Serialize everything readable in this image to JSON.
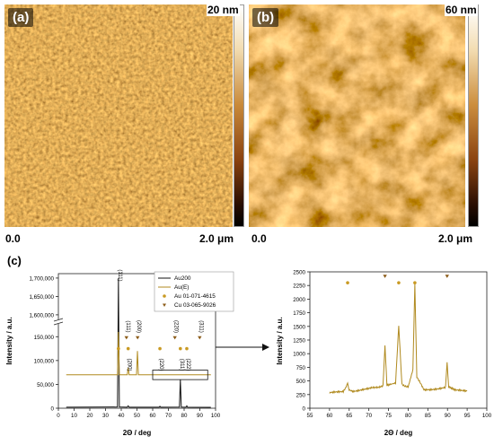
{
  "panels": {
    "a": {
      "label": "(a)",
      "scale_max": "20 nm",
      "x_start": "0.0",
      "x_end": "2.0 μm"
    },
    "b": {
      "label": "(b)",
      "scale_max": "60 nm",
      "x_start": "0.0",
      "x_end": "2.0 μm"
    },
    "c": {
      "label": "(c)"
    }
  },
  "colors": {
    "au200": "#111111",
    "aue": "#b08a1f",
    "marker": "#c99a23",
    "cu_marker": "#8b5a16"
  },
  "chart_data": [
    {
      "type": "line",
      "ylabel": "Intensity / a.u.",
      "xlabel": "2Θ / deg",
      "xlim": [
        0,
        100
      ],
      "x_ticks": [
        0,
        10,
        20,
        30,
        40,
        50,
        60,
        70,
        80,
        90,
        100
      ],
      "y_ticks_lower": [
        0,
        50000,
        100000,
        150000
      ],
      "y_ticks_upper": [
        1600000,
        1650000,
        1700000
      ],
      "y_tick_labels": [
        "0",
        "50,000",
        "100,000",
        "150,000",
        "1,600,000",
        "1,650,000",
        "1,700,000"
      ],
      "y_break": [
        175000,
        1590000
      ],
      "legend": {
        "placement": "top-right",
        "entries": [
          "Au200",
          "Au(E)",
          "Au 01-071-4615",
          "Cu 03-065-9026"
        ]
      },
      "series": [
        {
          "name": "Au200",
          "color": "#111111",
          "x": [
            5,
            37.6,
            38.2,
            38.8,
            43.8,
            44.4,
            45.0,
            64.1,
            64.6,
            65.1,
            77.0,
            77.6,
            78.2,
            81.2,
            81.7,
            82.2,
            97
          ],
          "y": [
            2000,
            2500,
            1700000,
            2500,
            2200,
            5000,
            2200,
            2100,
            4000,
            2100,
            2300,
            60000,
            2300,
            2100,
            5000,
            2100,
            1900
          ]
        },
        {
          "name": "Au(E)",
          "color": "#b08a1f",
          "x": [
            5,
            37.6,
            38.2,
            38.8,
            43.8,
            44.4,
            45.0,
            49.7,
            50.3,
            50.9,
            97
          ],
          "y": [
            70000,
            70000,
            160000,
            70000,
            70000,
            85000,
            70000,
            70000,
            120000,
            70000,
            70000
          ]
        }
      ],
      "markers_au": {
        "name": "Au 01-071-4615",
        "x": [
          38.2,
          44.4,
          64.6,
          77.6,
          81.7
        ],
        "y": [
          125000,
          125000,
          125000,
          125000,
          125000
        ]
      },
      "markers_cu": {
        "name": "Cu 03-065-9026",
        "x": [
          43.3,
          50.4,
          74.1,
          89.9
        ],
        "y": [
          148000,
          148000,
          148000,
          148000
        ]
      },
      "annotations": [
        {
          "text": "(111)",
          "x": 38.2,
          "y": 1730000
        },
        {
          "text": "(111)",
          "x": 43.3,
          "y": 175000
        },
        {
          "text": "(200)",
          "x": 50.4,
          "y": 175000
        },
        {
          "text": "(200)",
          "x": 44.4,
          "y": 95000
        },
        {
          "text": "(220)",
          "x": 64.6,
          "y": 95000
        },
        {
          "text": "(220)",
          "x": 74.1,
          "y": 175000
        },
        {
          "text": "(311)",
          "x": 77.6,
          "y": 95000
        },
        {
          "text": "(222)",
          "x": 81.7,
          "y": 95000
        },
        {
          "text": "(311)",
          "x": 89.9,
          "y": 175000
        }
      ],
      "zoom_box": {
        "x": [
          60,
          95
        ],
        "y": [
          60000,
          80000
        ]
      }
    },
    {
      "type": "line",
      "ylabel": "Intensity / a.u.",
      "xlabel": "2Θ / deg",
      "xlim": [
        55,
        100
      ],
      "ylim": [
        0,
        2500
      ],
      "x_ticks": [
        55,
        60,
        65,
        70,
        75,
        80,
        85,
        90,
        95,
        100
      ],
      "y_ticks": [
        0,
        250,
        500,
        750,
        1000,
        1250,
        1500,
        1750,
        2000,
        2250,
        2500
      ],
      "series": [
        {
          "name": "Au(E)",
          "color": "#b08a1f",
          "x": [
            60,
            63.5,
            64.2,
            64.6,
            65.0,
            66,
            70,
            73.6,
            74.1,
            74.6,
            76.8,
            77.6,
            78.4,
            80,
            81.2,
            81.7,
            82.2,
            84,
            89.5,
            89.9,
            90.3,
            92,
            95
          ],
          "y": [
            270,
            310,
            380,
            470,
            350,
            320,
            350,
            420,
            1150,
            420,
            460,
            1500,
            450,
            380,
            700,
            2270,
            560,
            340,
            380,
            850,
            380,
            320,
            320
          ]
        }
      ],
      "markers_au": {
        "x": [
          64.6,
          77.6,
          81.7
        ],
        "y": [
          2300,
          2300,
          2300
        ]
      },
      "markers_cu": {
        "x": [
          74.1,
          89.9
        ],
        "y": [
          2420,
          2420
        ]
      }
    }
  ]
}
